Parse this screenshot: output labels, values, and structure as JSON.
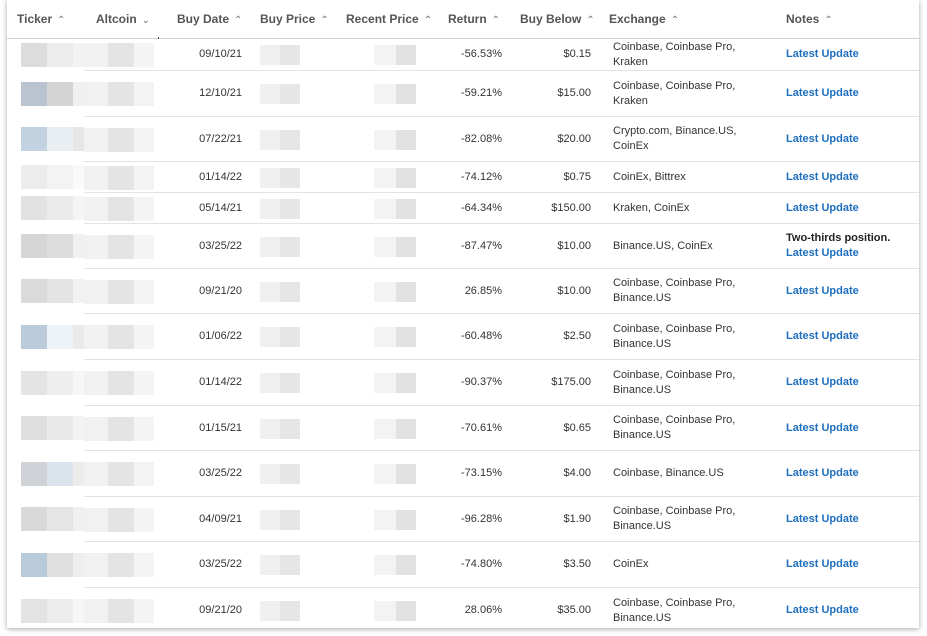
{
  "headers": {
    "ticker": "Ticker",
    "altcoin": "Altcoin",
    "buy_date": "Buy Date",
    "buy_price": "Buy Price",
    "recent_price": "Recent Price",
    "return": "Return",
    "buy_below": "Buy Below",
    "exchange": "Exchange",
    "notes": "Notes"
  },
  "sort_active_column": "Altcoin",
  "link_color": "#1f6fbf",
  "rows": [
    {
      "buy_date": "09/10/21",
      "return": "-56.53%",
      "buy_below": "$0.15",
      "exchange": "Coinbase, Coinbase Pro, Kraken",
      "note_prefix": "",
      "note_link": "Latest Update"
    },
    {
      "buy_date": "12/10/21",
      "return": "-59.21%",
      "buy_below": "$15.00",
      "exchange": "Coinbase, Coinbase Pro, Kraken",
      "note_prefix": "",
      "note_link": "Latest Update"
    },
    {
      "buy_date": "07/22/21",
      "return": "-82.08%",
      "buy_below": "$20.00",
      "exchange": "Crypto.com, Binance.US, CoinEx",
      "note_prefix": "",
      "note_link": "Latest Update"
    },
    {
      "buy_date": "01/14/22",
      "return": "-74.12%",
      "buy_below": "$0.75",
      "exchange": "CoinEx, Bittrex",
      "note_prefix": "",
      "note_link": "Latest Update"
    },
    {
      "buy_date": "05/14/21",
      "return": "-64.34%",
      "buy_below": "$150.00",
      "exchange": "Kraken, CoinEx",
      "note_prefix": "",
      "note_link": "Latest Update"
    },
    {
      "buy_date": "03/25/22",
      "return": "-87.47%",
      "buy_below": "$10.00",
      "exchange": "Binance.US, CoinEx",
      "note_prefix": "Two-thirds position. ",
      "note_link": "Latest Update"
    },
    {
      "buy_date": "09/21/20",
      "return": "26.85%",
      "buy_below": "$10.00",
      "exchange": "Coinbase, Coinbase Pro, Binance.US",
      "note_prefix": "",
      "note_link": "Latest Update"
    },
    {
      "buy_date": "01/06/22",
      "return": "-60.48%",
      "buy_below": "$2.50",
      "exchange": "Coinbase, Coinbase Pro, Binance.US",
      "note_prefix": "",
      "note_link": "Latest Update"
    },
    {
      "buy_date": "01/14/22",
      "return": "-90.37%",
      "buy_below": "$175.00",
      "exchange": "Coinbase, Coinbase Pro, Binance.US",
      "note_prefix": "",
      "note_link": "Latest Update"
    },
    {
      "buy_date": "01/15/21",
      "return": "-70.61%",
      "buy_below": "$0.65",
      "exchange": "Coinbase, Coinbase Pro, Binance.US",
      "note_prefix": "",
      "note_link": "Latest Update"
    },
    {
      "buy_date": "03/25/22",
      "return": "-73.15%",
      "buy_below": "$4.00",
      "exchange": "Coinbase, Binance.US",
      "note_prefix": "",
      "note_link": "Latest Update"
    },
    {
      "buy_date": "04/09/21",
      "return": "-96.28%",
      "buy_below": "$1.90",
      "exchange": "Coinbase, Coinbase Pro, Binance.US",
      "note_prefix": "",
      "note_link": "Latest Update"
    },
    {
      "buy_date": "03/25/22",
      "return": "-74.80%",
      "buy_below": "$3.50",
      "exchange": "CoinEx",
      "note_prefix": "",
      "note_link": "Latest Update"
    },
    {
      "buy_date": "09/21/20",
      "return": "28.06%",
      "buy_below": "$35.00",
      "exchange": "Coinbase, Coinbase Pro, Binance.US",
      "note_prefix": "",
      "note_link": "Latest Update"
    }
  ]
}
